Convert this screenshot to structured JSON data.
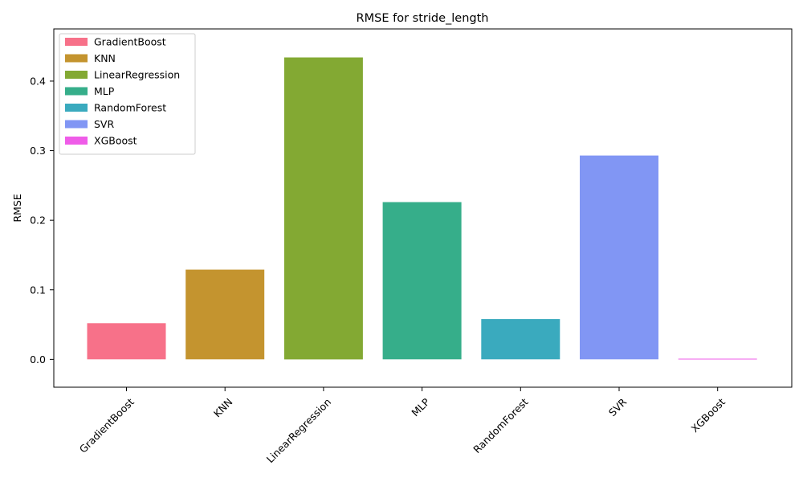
{
  "chart_data": {
    "type": "bar",
    "title": "RMSE for stride_length",
    "xlabel": "",
    "ylabel": "RMSE",
    "categories": [
      "GradientBoost",
      "KNN",
      "LinearRegression",
      "MLP",
      "RandomForest",
      "SVR",
      "XGBoost"
    ],
    "values": [
      0.052,
      0.129,
      0.434,
      0.226,
      0.058,
      0.293,
      0.001
    ],
    "colors": [
      "#f77189",
      "#c4942f",
      "#83a933",
      "#36ae8a",
      "#3aaabe",
      "#8196f4",
      "#ef5ce8"
    ],
    "ylim": [
      -0.04,
      0.475
    ],
    "yticks": [
      0.0,
      0.1,
      0.2,
      0.3,
      0.4
    ],
    "ytick_labels": [
      "0.0",
      "0.1",
      "0.2",
      "0.3",
      "0.4"
    ],
    "grid": false,
    "legend_placement": "upper-left",
    "legend": [
      "GradientBoost",
      "KNN",
      "LinearRegression",
      "MLP",
      "RandomForest",
      "SVR",
      "XGBoost"
    ]
  }
}
